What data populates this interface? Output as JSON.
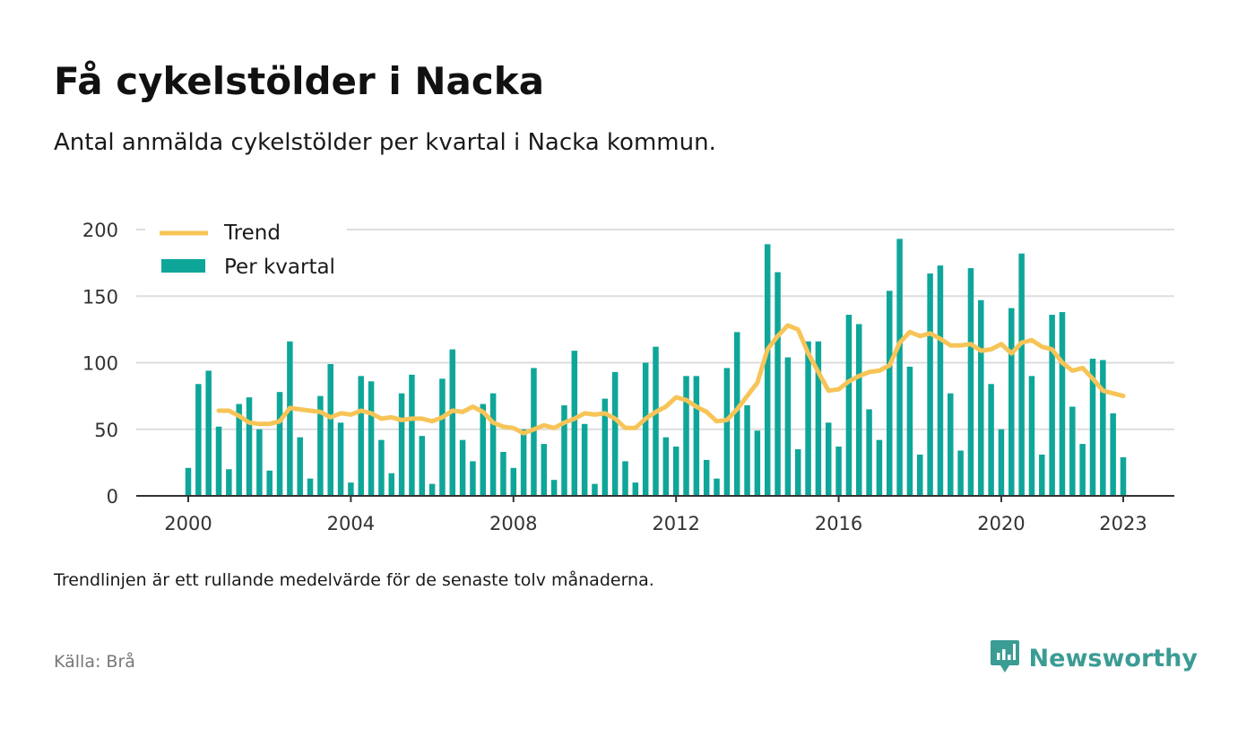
{
  "title": "Få cykelstölder i Nacka",
  "subtitle": "Antal anmälda cykelstölder per kvartal i Nacka kommun.",
  "note": "Trendlinjen är ett rullande medelvärde för de senaste tolv månaderna.",
  "source": "Källa: Brå",
  "brand": {
    "name": "Newsworthy",
    "icon": "newsworthy-logo-icon"
  },
  "colors": {
    "bars": "#0fa69a",
    "trend": "#f7c457",
    "grid": "#dddddd",
    "axis": "#333333",
    "brand": "#3b9c94"
  },
  "chart_data": {
    "type": "bar",
    "x_axis": {
      "ticks": [
        "2000",
        "2004",
        "2008",
        "2012",
        "2016",
        "2020",
        "2023"
      ],
      "tick_values": [
        2000,
        2004,
        2008,
        2012,
        2016,
        2020,
        2023
      ],
      "range": [
        1998.75,
        2024.25
      ]
    },
    "y_axis": {
      "ticks": [
        "0",
        "50",
        "100",
        "150",
        "200"
      ],
      "tick_values": [
        0,
        50,
        100,
        150,
        200
      ],
      "ylim": [
        0,
        200
      ]
    },
    "grid": true,
    "legend": {
      "position": "top-left",
      "entries": [
        "Trend",
        "Per kvartal"
      ]
    },
    "series": [
      {
        "name": "Per kvartal",
        "type": "bar",
        "x": [
          2000.0,
          2000.25,
          2000.5,
          2000.75,
          2001.0,
          2001.25,
          2001.5,
          2001.75,
          2002.0,
          2002.25,
          2002.5,
          2002.75,
          2003.0,
          2003.25,
          2003.5,
          2003.75,
          2004.0,
          2004.25,
          2004.5,
          2004.75,
          2005.0,
          2005.25,
          2005.5,
          2005.75,
          2006.0,
          2006.25,
          2006.5,
          2006.75,
          2007.0,
          2007.25,
          2007.5,
          2007.75,
          2008.0,
          2008.25,
          2008.5,
          2008.75,
          2009.0,
          2009.25,
          2009.5,
          2009.75,
          2010.0,
          2010.25,
          2010.5,
          2010.75,
          2011.0,
          2011.25,
          2011.5,
          2011.75,
          2012.0,
          2012.25,
          2012.5,
          2012.75,
          2013.0,
          2013.25,
          2013.5,
          2013.75,
          2014.0,
          2014.25,
          2014.5,
          2014.75,
          2015.0,
          2015.25,
          2015.5,
          2015.75,
          2016.0,
          2016.25,
          2016.5,
          2016.75,
          2017.0,
          2017.25,
          2017.5,
          2017.75,
          2018.0,
          2018.25,
          2018.5,
          2018.75,
          2019.0,
          2019.25,
          2019.5,
          2019.75,
          2020.0,
          2020.25,
          2020.5,
          2020.75,
          2021.0,
          2021.25,
          2021.5,
          2021.75,
          2022.0,
          2022.25,
          2022.5,
          2022.75,
          2023.0
        ],
        "values": [
          21,
          84,
          94,
          52,
          20,
          69,
          74,
          50,
          19,
          78,
          116,
          44,
          13,
          75,
          99,
          55,
          10,
          90,
          86,
          42,
          17,
          77,
          91,
          45,
          9,
          88,
          110,
          42,
          26,
          69,
          77,
          33,
          21,
          50,
          96,
          39,
          12,
          68,
          109,
          54,
          9,
          73,
          93,
          26,
          10,
          100,
          112,
          44,
          37,
          90,
          90,
          27,
          13,
          96,
          123,
          68,
          49,
          189,
          168,
          104,
          35,
          116,
          116,
          55,
          37,
          136,
          129,
          65,
          42,
          154,
          193,
          97,
          31,
          167,
          173,
          77,
          34,
          171,
          147,
          84,
          50,
          141,
          182,
          90,
          31,
          136,
          138,
          67,
          39,
          103,
          102,
          62,
          29
        ]
      },
      {
        "name": "Trend",
        "type": "line",
        "x": [
          2000.75,
          2001.0,
          2001.25,
          2001.5,
          2001.75,
          2002.0,
          2002.25,
          2002.5,
          2002.75,
          2003.0,
          2003.25,
          2003.5,
          2003.75,
          2004.0,
          2004.25,
          2004.5,
          2004.75,
          2005.0,
          2005.25,
          2005.5,
          2005.75,
          2006.0,
          2006.25,
          2006.5,
          2006.75,
          2007.0,
          2007.25,
          2007.5,
          2007.75,
          2008.0,
          2008.25,
          2008.5,
          2008.75,
          2009.0,
          2009.25,
          2009.5,
          2009.75,
          2010.0,
          2010.25,
          2010.5,
          2010.75,
          2011.0,
          2011.25,
          2011.5,
          2011.75,
          2012.0,
          2012.25,
          2012.5,
          2012.75,
          2013.0,
          2013.25,
          2013.5,
          2013.75,
          2014.0,
          2014.25,
          2014.5,
          2014.75,
          2015.0,
          2015.25,
          2015.5,
          2015.75,
          2016.0,
          2016.25,
          2016.5,
          2016.75,
          2017.0,
          2017.25,
          2017.5,
          2017.75,
          2018.0,
          2018.25,
          2018.5,
          2018.75,
          2019.0,
          2019.25,
          2019.5,
          2019.75,
          2020.0,
          2020.25,
          2020.5,
          2020.75,
          2021.0,
          2021.25,
          2021.5,
          2021.75,
          2022.0,
          2022.25,
          2022.5,
          2022.75,
          2023.0
        ],
        "values": [
          64,
          64,
          60,
          55,
          54,
          54,
          56,
          66,
          65,
          64,
          63,
          59,
          62,
          61,
          64,
          62,
          58,
          59,
          57,
          58,
          58,
          56,
          59,
          64,
          63,
          67,
          63,
          55,
          52,
          51,
          47,
          50,
          53,
          51,
          55,
          58,
          62,
          61,
          62,
          58,
          51,
          51,
          58,
          63,
          67,
          74,
          72,
          67,
          63,
          56,
          57,
          65,
          75,
          85,
          110,
          120,
          128,
          125,
          107,
          93,
          79,
          80,
          86,
          90,
          93,
          94,
          98,
          115,
          123,
          120,
          122,
          118,
          113,
          113,
          114,
          109,
          110,
          114,
          107,
          115,
          117,
          112,
          110,
          100,
          94,
          96,
          88,
          79,
          77,
          75
        ]
      }
    ]
  }
}
